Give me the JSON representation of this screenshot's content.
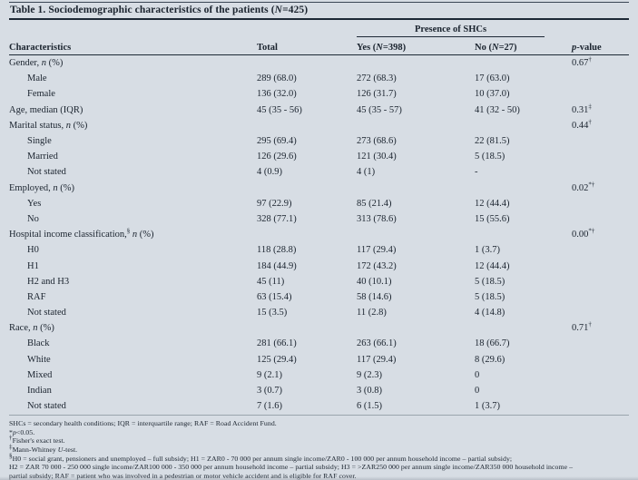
{
  "colors": {
    "background": "#d7dde4",
    "text": "#1a232e",
    "rule_dark": "#1d2936",
    "rule_faint": "#9aa4ad"
  },
  "table": {
    "title": "Table 1. Sociodemographic characteristics of the patients ({i}N{/i}=425)",
    "group_header": "Presence of SHCs",
    "columns": {
      "characteristics": "Characteristics",
      "total": "Total",
      "yes": "Yes ({i}N{/i}=398)",
      "no": "No ({i}N{/i}=27)",
      "p": "{i}p{/i}-value"
    },
    "rows": [
      {
        "label": "Gender, {i}n{/i} (%)",
        "indent": false,
        "total": "",
        "yes": "",
        "no": "",
        "p": "0.67{s}†{/s}"
      },
      {
        "label": "Male",
        "indent": true,
        "total": "289 (68.0)",
        "yes": "272 (68.3)",
        "no": "17 (63.0)",
        "p": ""
      },
      {
        "label": "Female",
        "indent": true,
        "total": "136 (32.0)",
        "yes": "126 (31.7)",
        "no": "10 (37.0)",
        "p": ""
      },
      {
        "label": "Age, median (IQR)",
        "indent": false,
        "total": "45 (35 - 56)",
        "yes": "45 (35 - 57)",
        "no": "41 (32 - 50)",
        "p": "0.31{s}‡{/s}"
      },
      {
        "label": "Marital status, {i}n{/i} (%)",
        "indent": false,
        "total": "",
        "yes": "",
        "no": "",
        "p": "0.44{s}†{/s}"
      },
      {
        "label": "Single",
        "indent": true,
        "total": "295 (69.4)",
        "yes": "273 (68.6)",
        "no": "22 (81.5)",
        "p": ""
      },
      {
        "label": "Married",
        "indent": true,
        "total": "126 (29.6)",
        "yes": "121 (30.4)",
        "no": "5 (18.5)",
        "p": ""
      },
      {
        "label": "Not stated",
        "indent": true,
        "total": "4 (0.9)",
        "yes": "4 (1)",
        "no": "-",
        "p": ""
      },
      {
        "label": "Employed, {i}n{/i} (%)",
        "indent": false,
        "total": "",
        "yes": "",
        "no": "",
        "p": "0.02{s}*†{/s}"
      },
      {
        "label": "Yes",
        "indent": true,
        "total": "97 (22.9)",
        "yes": "85 (21.4)",
        "no": "12 (44.4)",
        "p": ""
      },
      {
        "label": "No",
        "indent": true,
        "total": "328 (77.1)",
        "yes": "313 (78.6)",
        "no": "15 (55.6)",
        "p": ""
      },
      {
        "label": "Hospital income classification,{s}§{/s} {i}n{/i} (%)",
        "indent": false,
        "total": "",
        "yes": "",
        "no": "",
        "p": "0.00{s}*†{/s}"
      },
      {
        "label": "H0",
        "indent": true,
        "total": "118 (28.8)",
        "yes": "117 (29.4)",
        "no": "1 (3.7)",
        "p": ""
      },
      {
        "label": "H1",
        "indent": true,
        "total": "184 (44.9)",
        "yes": "172 (43.2)",
        "no": "12 (44.4)",
        "p": ""
      },
      {
        "label": "H2 and H3",
        "indent": true,
        "total": "45 (11)",
        "yes": "40 (10.1)",
        "no": "5 (18.5)",
        "p": ""
      },
      {
        "label": "RAF",
        "indent": true,
        "total": "63 (15.4)",
        "yes": "58 (14.6)",
        "no": "5 (18.5)",
        "p": ""
      },
      {
        "label": "Not stated",
        "indent": true,
        "total": "15 (3.5)",
        "yes": "11 (2.8)",
        "no": "4 (14.8)",
        "p": ""
      },
      {
        "label": "Race, {i}n{/i} (%)",
        "indent": false,
        "total": "",
        "yes": "",
        "no": "",
        "p": "0.71{s}†{/s}"
      },
      {
        "label": "Black",
        "indent": true,
        "total": "281 (66.1)",
        "yes": "263 (66.1)",
        "no": "18 (66.7)",
        "p": ""
      },
      {
        "label": "White",
        "indent": true,
        "total": "125 (29.4)",
        "yes": "117 (29.4)",
        "no": "8 (29.6)",
        "p": ""
      },
      {
        "label": "Mixed",
        "indent": true,
        "total": "9 (2.1)",
        "yes": "9 (2.3)",
        "no": "0",
        "p": ""
      },
      {
        "label": "Indian",
        "indent": true,
        "total": "3 (0.7)",
        "yes": "3 (0.8)",
        "no": "0",
        "p": ""
      },
      {
        "label": "Not stated",
        "indent": true,
        "total": "7 (1.6)",
        "yes": "6 (1.5)",
        "no": "1 (3.7)",
        "p": ""
      }
    ]
  },
  "footnotes": [
    "SHCs = secondary health conditions; IQR = interquartile range; RAF = Road Accident Fund.",
    "*{i}p{/i}<0.05.",
    "{s}†{/s}Fisher's exact test.",
    "{s}‡{/s}Mann-Whitney {i}U{/i}-test.",
    "{s}§{/s}H0 = social grant, pensioners and unemployed – full subsidy; H1 = ZAR0 - 70 000 per annum single income/ZAR0 - 100 000 per annum household income – partial subsidy;",
    "H2 = ZAR 70 000 - 250 000 single income/ZAR100 000 - 350 000 per annum household income – partial subsidy; H3 = >ZAR250 000 per annum single income/ZAR350 000 household income –",
    "partial subsidy; RAF = patient who was involved in a pedestrian or motor vehicle accident and is eligible for RAF cover."
  ]
}
